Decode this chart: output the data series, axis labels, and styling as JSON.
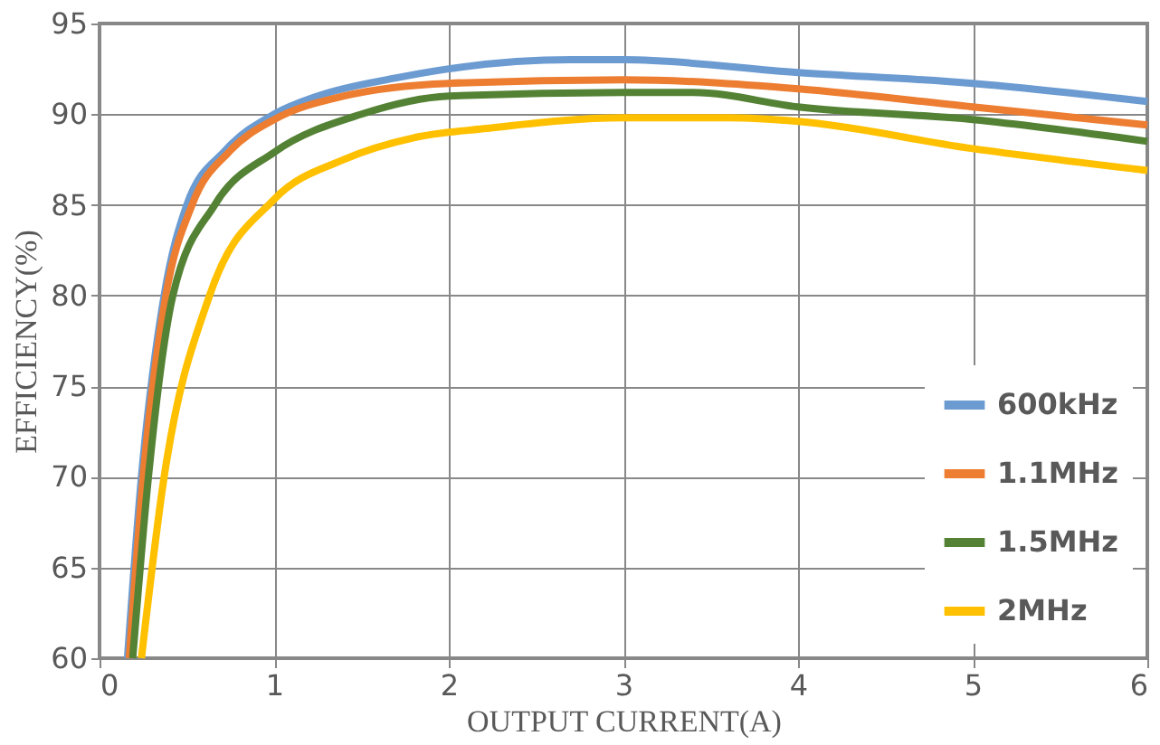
{
  "chart_data": {
    "type": "line",
    "xlabel": "OUTPUT CURRENT(A)",
    "ylabel": "EFFICIENCY(%)",
    "xlim": [
      0,
      6
    ],
    "xticks": [
      0,
      1,
      2,
      3,
      4,
      5,
      6
    ],
    "ylim": [
      60,
      95
    ],
    "yticks": [
      60,
      65,
      70,
      75,
      80,
      85,
      90,
      95
    ],
    "grid": true,
    "legend": "bottom right",
    "marker": "none",
    "line_style": "solid",
    "series": [
      {
        "name": "600kHz",
        "color": "#6b9bd1",
        "x": [
          0.16,
          0.24,
          0.37,
          0.5,
          0.72,
          1.0,
          1.25,
          1.7,
          2.0,
          2.7,
          3.0,
          4.0,
          5.0,
          6.0
        ],
        "values": [
          60,
          70,
          80,
          85,
          88,
          90,
          91,
          92,
          92.5,
          93,
          93,
          92.3,
          91.7,
          90.7
        ]
      },
      {
        "name": "1.1MHz",
        "color": "#ed7d31",
        "x": [
          0.17,
          0.25,
          0.38,
          0.53,
          0.75,
          1.0,
          1.4,
          2.0,
          3.0,
          4.0,
          5.0,
          6.0
        ],
        "values": [
          60,
          70,
          80,
          85,
          88,
          89.7,
          91,
          91.7,
          91.9,
          91.4,
          90.4,
          89.4
        ]
      },
      {
        "name": "1.5MHz",
        "color": "#548235",
        "x": [
          0.19,
          0.28,
          0.42,
          0.66,
          1.0,
          1.5,
          2.0,
          3.0,
          3.4,
          4.0,
          5.0,
          6.0
        ],
        "values": [
          60,
          70,
          80,
          85,
          87.9,
          90,
          91,
          91.2,
          91.2,
          90.4,
          89.7,
          88.5
        ]
      },
      {
        "name": "2MHz",
        "color": "#ffc000",
        "x": [
          0.24,
          0.37,
          0.63,
          1.0,
          1.4,
          1.8,
          2.2,
          3.0,
          3.6,
          4.0,
          5.0,
          6.0
        ],
        "values": [
          60,
          70,
          80,
          85.3,
          87.5,
          88.7,
          89.2,
          89.8,
          89.8,
          89.6,
          88.1,
          86.9
        ]
      }
    ]
  }
}
